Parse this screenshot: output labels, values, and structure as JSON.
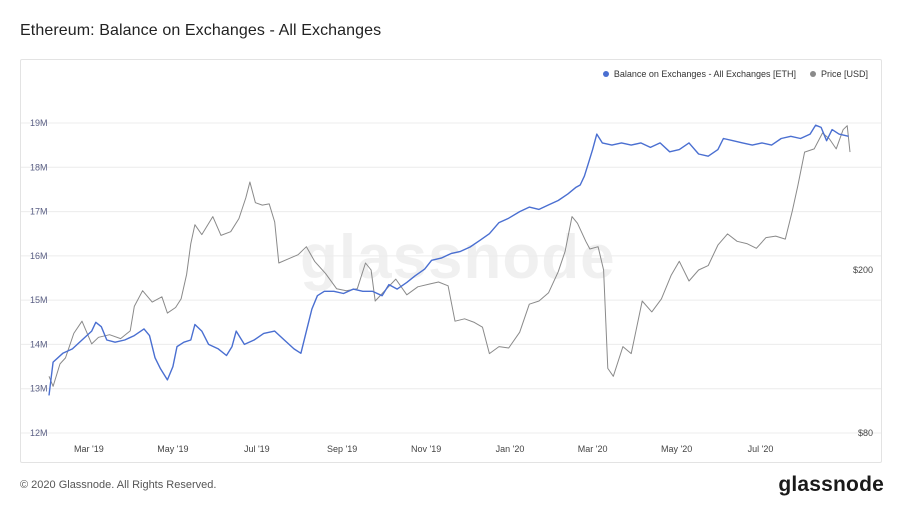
{
  "header": {
    "title": "Ethereum: Balance on Exchanges - All Exchanges"
  },
  "footer": {
    "copyright": "© 2020 Glassnode. All Rights Reserved.",
    "logo": "glassnode"
  },
  "watermark": "glassnode",
  "chart_data": {
    "type": "line",
    "x_axis": {
      "type": "time",
      "range": [
        "2019-01-31",
        "2020-09-04"
      ],
      "ticks": [
        {
          "date": "2019-03-01",
          "label": "Mar '19"
        },
        {
          "date": "2019-05-01",
          "label": "May '19"
        },
        {
          "date": "2019-07-01",
          "label": "Jul '19"
        },
        {
          "date": "2019-09-01",
          "label": "Sep '19"
        },
        {
          "date": "2019-11-01",
          "label": "Nov '19"
        },
        {
          "date": "2020-01-01",
          "label": "Jan '20"
        },
        {
          "date": "2020-03-01",
          "label": "Mar '20"
        },
        {
          "date": "2020-05-01",
          "label": "May '20"
        },
        {
          "date": "2020-07-01",
          "label": "Jul '20"
        }
      ]
    },
    "y_left": {
      "range": [
        12000000,
        19000000
      ],
      "ticks": [
        {
          "value": 12000000,
          "label": "12M"
        },
        {
          "value": 13000000,
          "label": "13M"
        },
        {
          "value": 14000000,
          "label": "14M"
        },
        {
          "value": 15000000,
          "label": "15M"
        },
        {
          "value": 16000000,
          "label": "16M"
        },
        {
          "value": 17000000,
          "label": "17M"
        },
        {
          "value": 18000000,
          "label": "18M"
        },
        {
          "value": 19000000,
          "label": "19M"
        }
      ]
    },
    "y_right": {
      "scale": "log",
      "ticks": [
        {
          "value": 80,
          "label": "$80"
        },
        {
          "value": 200,
          "label": "$200"
        }
      ]
    },
    "legend_position": "top-right",
    "series": [
      {
        "name": "Balance on Exchanges - All Exchanges [ETH]",
        "color": "#4a6fd1",
        "axis": "left",
        "points": [
          [
            "2019-01-31",
            12850000
          ],
          [
            "2019-02-03",
            13600000
          ],
          [
            "2019-02-10",
            13800000
          ],
          [
            "2019-02-17",
            13900000
          ],
          [
            "2019-02-24",
            14100000
          ],
          [
            "2019-03-03",
            14300000
          ],
          [
            "2019-03-06",
            14500000
          ],
          [
            "2019-03-10",
            14400000
          ],
          [
            "2019-03-14",
            14100000
          ],
          [
            "2019-03-20",
            14050000
          ],
          [
            "2019-03-27",
            14100000
          ],
          [
            "2019-04-03",
            14200000
          ],
          [
            "2019-04-10",
            14350000
          ],
          [
            "2019-04-14",
            14200000
          ],
          [
            "2019-04-18",
            13700000
          ],
          [
            "2019-04-22",
            13450000
          ],
          [
            "2019-04-27",
            13200000
          ],
          [
            "2019-05-01",
            13500000
          ],
          [
            "2019-05-04",
            13950000
          ],
          [
            "2019-05-09",
            14050000
          ],
          [
            "2019-05-14",
            14100000
          ],
          [
            "2019-05-17",
            14450000
          ],
          [
            "2019-05-22",
            14300000
          ],
          [
            "2019-05-27",
            14000000
          ],
          [
            "2019-06-03",
            13900000
          ],
          [
            "2019-06-09",
            13750000
          ],
          [
            "2019-06-13",
            13950000
          ],
          [
            "2019-06-16",
            14300000
          ],
          [
            "2019-06-22",
            14000000
          ],
          [
            "2019-06-29",
            14100000
          ],
          [
            "2019-07-06",
            14250000
          ],
          [
            "2019-07-14",
            14300000
          ],
          [
            "2019-07-21",
            14100000
          ],
          [
            "2019-07-28",
            13900000
          ],
          [
            "2019-08-02",
            13800000
          ],
          [
            "2019-08-06",
            14300000
          ],
          [
            "2019-08-10",
            14800000
          ],
          [
            "2019-08-14",
            15100000
          ],
          [
            "2019-08-19",
            15200000
          ],
          [
            "2019-08-26",
            15200000
          ],
          [
            "2019-09-02",
            15150000
          ],
          [
            "2019-09-09",
            15250000
          ],
          [
            "2019-09-16",
            15200000
          ],
          [
            "2019-09-23",
            15200000
          ],
          [
            "2019-09-30",
            15100000
          ],
          [
            "2019-10-05",
            15350000
          ],
          [
            "2019-10-11",
            15250000
          ],
          [
            "2019-10-18",
            15400000
          ],
          [
            "2019-10-24",
            15550000
          ],
          [
            "2019-10-31",
            15700000
          ],
          [
            "2019-11-05",
            15900000
          ],
          [
            "2019-11-12",
            15950000
          ],
          [
            "2019-11-19",
            16050000
          ],
          [
            "2019-11-26",
            16100000
          ],
          [
            "2019-12-03",
            16200000
          ],
          [
            "2019-12-10",
            16350000
          ],
          [
            "2019-12-17",
            16500000
          ],
          [
            "2019-12-24",
            16750000
          ],
          [
            "2019-12-31",
            16850000
          ],
          [
            "2020-01-08",
            17000000
          ],
          [
            "2020-01-15",
            17100000
          ],
          [
            "2020-01-22",
            17050000
          ],
          [
            "2020-01-29",
            17150000
          ],
          [
            "2020-02-05",
            17250000
          ],
          [
            "2020-02-12",
            17400000
          ],
          [
            "2020-02-18",
            17550000
          ],
          [
            "2020-02-21",
            17600000
          ],
          [
            "2020-02-24",
            17800000
          ],
          [
            "2020-02-27",
            18100000
          ],
          [
            "2020-03-01",
            18400000
          ],
          [
            "2020-03-04",
            18750000
          ],
          [
            "2020-03-08",
            18550000
          ],
          [
            "2020-03-15",
            18500000
          ],
          [
            "2020-03-22",
            18550000
          ],
          [
            "2020-03-29",
            18500000
          ],
          [
            "2020-04-05",
            18550000
          ],
          [
            "2020-04-12",
            18450000
          ],
          [
            "2020-04-19",
            18550000
          ],
          [
            "2020-04-26",
            18350000
          ],
          [
            "2020-05-03",
            18400000
          ],
          [
            "2020-05-10",
            18550000
          ],
          [
            "2020-05-17",
            18300000
          ],
          [
            "2020-05-24",
            18250000
          ],
          [
            "2020-05-31",
            18400000
          ],
          [
            "2020-06-04",
            18650000
          ],
          [
            "2020-06-11",
            18600000
          ],
          [
            "2020-06-18",
            18550000
          ],
          [
            "2020-06-25",
            18500000
          ],
          [
            "2020-07-02",
            18550000
          ],
          [
            "2020-07-09",
            18500000
          ],
          [
            "2020-07-16",
            18650000
          ],
          [
            "2020-07-23",
            18700000
          ],
          [
            "2020-07-30",
            18650000
          ],
          [
            "2020-08-06",
            18750000
          ],
          [
            "2020-08-10",
            18950000
          ],
          [
            "2020-08-14",
            18900000
          ],
          [
            "2020-08-18",
            18600000
          ],
          [
            "2020-08-22",
            18850000
          ],
          [
            "2020-08-27",
            18750000
          ],
          [
            "2020-09-03",
            18700000
          ]
        ]
      },
      {
        "name": "Price [USD]",
        "color": "#8a8a8a",
        "axis": "right",
        "points": [
          [
            "2019-01-31",
            110
          ],
          [
            "2019-02-03",
            104
          ],
          [
            "2019-02-08",
            118
          ],
          [
            "2019-02-12",
            122
          ],
          [
            "2019-02-18",
            140
          ],
          [
            "2019-02-24",
            150
          ],
          [
            "2019-03-03",
            132
          ],
          [
            "2019-03-08",
            137
          ],
          [
            "2019-03-16",
            139
          ],
          [
            "2019-03-24",
            136
          ],
          [
            "2019-03-31",
            142
          ],
          [
            "2019-04-03",
            163
          ],
          [
            "2019-04-09",
            178
          ],
          [
            "2019-04-16",
            167
          ],
          [
            "2019-04-23",
            172
          ],
          [
            "2019-04-27",
            157
          ],
          [
            "2019-05-03",
            162
          ],
          [
            "2019-05-07",
            170
          ],
          [
            "2019-05-11",
            195
          ],
          [
            "2019-05-14",
            232
          ],
          [
            "2019-05-17",
            258
          ],
          [
            "2019-05-22",
            244
          ],
          [
            "2019-05-30",
            270
          ],
          [
            "2019-06-05",
            243
          ],
          [
            "2019-06-12",
            248
          ],
          [
            "2019-06-18",
            267
          ],
          [
            "2019-06-23",
            300
          ],
          [
            "2019-06-26",
            328
          ],
          [
            "2019-06-30",
            292
          ],
          [
            "2019-07-05",
            288
          ],
          [
            "2019-07-10",
            290
          ],
          [
            "2019-07-14",
            262
          ],
          [
            "2019-07-17",
            208
          ],
          [
            "2019-07-24",
            213
          ],
          [
            "2019-07-31",
            218
          ],
          [
            "2019-08-06",
            228
          ],
          [
            "2019-08-12",
            210
          ],
          [
            "2019-08-20",
            196
          ],
          [
            "2019-08-28",
            180
          ],
          [
            "2019-09-04",
            178
          ],
          [
            "2019-09-12",
            180
          ],
          [
            "2019-09-18",
            208
          ],
          [
            "2019-09-22",
            200
          ],
          [
            "2019-09-25",
            168
          ],
          [
            "2019-10-02",
            178
          ],
          [
            "2019-10-10",
            190
          ],
          [
            "2019-10-18",
            174
          ],
          [
            "2019-10-26",
            182
          ],
          [
            "2019-11-04",
            185
          ],
          [
            "2019-11-10",
            187
          ],
          [
            "2019-11-17",
            183
          ],
          [
            "2019-11-22",
            150
          ],
          [
            "2019-11-29",
            152
          ],
          [
            "2019-12-06",
            149
          ],
          [
            "2019-12-12",
            145
          ],
          [
            "2019-12-17",
            125
          ],
          [
            "2019-12-24",
            130
          ],
          [
            "2019-12-31",
            129
          ],
          [
            "2020-01-08",
            141
          ],
          [
            "2020-01-15",
            165
          ],
          [
            "2020-01-22",
            168
          ],
          [
            "2020-01-29",
            176
          ],
          [
            "2020-02-05",
            198
          ],
          [
            "2020-02-10",
            222
          ],
          [
            "2020-02-15",
            270
          ],
          [
            "2020-02-19",
            260
          ],
          [
            "2020-02-25",
            235
          ],
          [
            "2020-02-28",
            225
          ],
          [
            "2020-03-05",
            228
          ],
          [
            "2020-03-09",
            200
          ],
          [
            "2020-03-12",
            115
          ],
          [
            "2020-03-16",
            110
          ],
          [
            "2020-03-23",
            130
          ],
          [
            "2020-03-29",
            125
          ],
          [
            "2020-04-06",
            168
          ],
          [
            "2020-04-13",
            158
          ],
          [
            "2020-04-20",
            170
          ],
          [
            "2020-04-27",
            194
          ],
          [
            "2020-05-03",
            210
          ],
          [
            "2020-05-10",
            188
          ],
          [
            "2020-05-17",
            200
          ],
          [
            "2020-05-24",
            205
          ],
          [
            "2020-05-31",
            230
          ],
          [
            "2020-06-07",
            245
          ],
          [
            "2020-06-14",
            235
          ],
          [
            "2020-06-21",
            232
          ],
          [
            "2020-06-28",
            226
          ],
          [
            "2020-07-05",
            240
          ],
          [
            "2020-07-12",
            242
          ],
          [
            "2020-07-19",
            238
          ],
          [
            "2020-07-24",
            278
          ],
          [
            "2020-07-28",
            320
          ],
          [
            "2020-08-02",
            388
          ],
          [
            "2020-08-09",
            395
          ],
          [
            "2020-08-15",
            432
          ],
          [
            "2020-08-20",
            418
          ],
          [
            "2020-08-25",
            395
          ],
          [
            "2020-08-30",
            440
          ],
          [
            "2020-09-02",
            450
          ],
          [
            "2020-09-04",
            388
          ]
        ]
      }
    ]
  }
}
